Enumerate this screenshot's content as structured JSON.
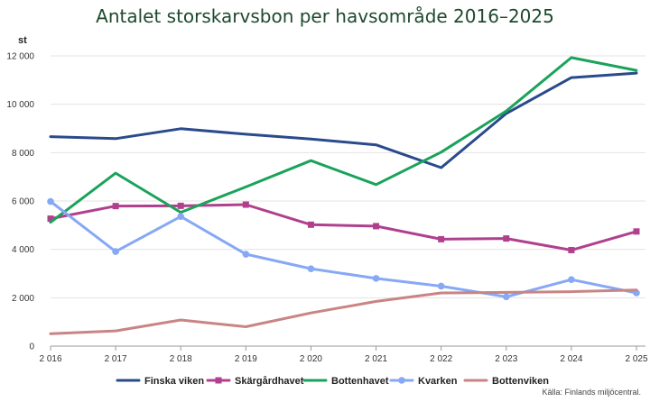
{
  "chart_data": {
    "type": "line",
    "title": "Antalet storskarvsbon per havsområde 2016–2025",
    "ylabel": "st",
    "xlabel": "",
    "x": [
      "2 016",
      "2 017",
      "2 018",
      "2 019",
      "2 020",
      "2 021",
      "2 022",
      "2 023",
      "2 024",
      "2 025"
    ],
    "ylim": [
      0,
      12000
    ],
    "yticks": [
      0,
      2000,
      4000,
      6000,
      8000,
      10000,
      12000
    ],
    "ytick_labels": [
      "0",
      "2 000",
      "4 000",
      "6 000",
      "8 000",
      "10 000",
      "12 000"
    ],
    "grid": true,
    "legend_position": "bottom",
    "series": [
      {
        "name": "Finska viken",
        "color": "#2a4a8c",
        "marker": "none",
        "values": [
          8660,
          8580,
          8990,
          8760,
          8560,
          8320,
          7380,
          9620,
          11100,
          11290
        ]
      },
      {
        "name": "Skärgårdhavet",
        "color": "#b0408e",
        "marker": "square",
        "values": [
          5270,
          5790,
          5800,
          5850,
          5020,
          4960,
          4420,
          4450,
          3970,
          4740
        ]
      },
      {
        "name": "Bottenhavet",
        "color": "#1aa35a",
        "marker": "none",
        "values": [
          5120,
          7150,
          5530,
          6580,
          7670,
          6680,
          8020,
          9720,
          11930,
          11400
        ]
      },
      {
        "name": "Kvarken",
        "color": "#86a8f5",
        "marker": "circle",
        "values": [
          5980,
          3910,
          5360,
          3800,
          3200,
          2800,
          2480,
          2040,
          2750,
          2200
        ]
      },
      {
        "name": "Bottenviken",
        "color": "#c98484",
        "marker": "none",
        "values": [
          510,
          630,
          1080,
          800,
          1370,
          1850,
          2200,
          2220,
          2250,
          2320
        ]
      }
    ],
    "source": "Källa: Finlands miljöcentral."
  }
}
